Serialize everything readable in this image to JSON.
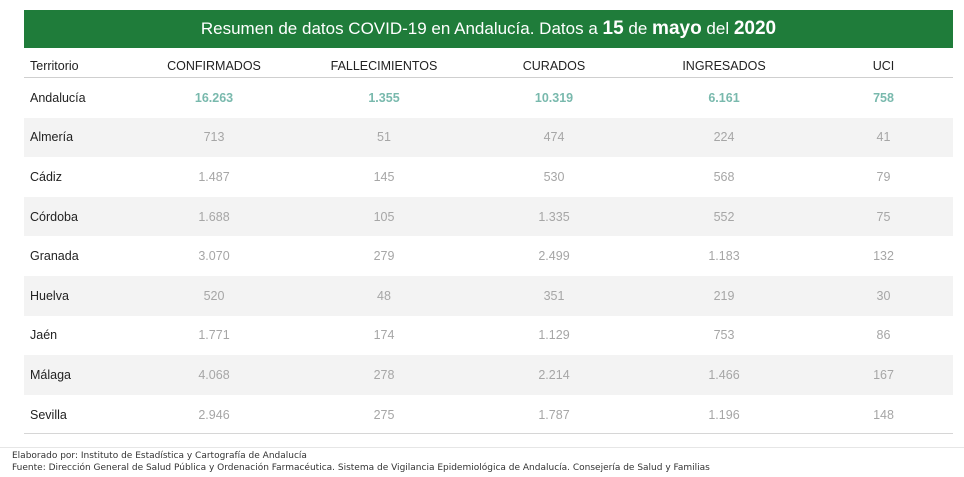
{
  "banner": {
    "part1": "Resumen de datos COVID-19 en Andalucía. Datos a",
    "day": "15",
    "de": "de",
    "month": "mayo",
    "del": "del",
    "year": "2020"
  },
  "table": {
    "headers": [
      "Territorio",
      "CONFIRMADOS",
      "FALLECIMIENTOS",
      "CURADOS",
      "INGRESADOS",
      "UCI"
    ],
    "rows": [
      [
        "Andalucía",
        "16.263",
        "1.355",
        "10.319",
        "6.161",
        "758"
      ],
      [
        "Almería",
        "713",
        "51",
        "474",
        "224",
        "41"
      ],
      [
        "Cádiz",
        "1.487",
        "145",
        "530",
        "568",
        "79"
      ],
      [
        "Córdoba",
        "1.688",
        "105",
        "1.335",
        "552",
        "75"
      ],
      [
        "Granada",
        "3.070",
        "279",
        "2.499",
        "1.183",
        "132"
      ],
      [
        "Huelva",
        "520",
        "48",
        "351",
        "219",
        "30"
      ],
      [
        "Jaén",
        "1.771",
        "174",
        "1.129",
        "753",
        "86"
      ],
      [
        "Málaga",
        "4.068",
        "278",
        "2.214",
        "1.466",
        "167"
      ],
      [
        "Sevilla",
        "2.946",
        "275",
        "1.787",
        "1.196",
        "148"
      ]
    ]
  },
  "footer": {
    "line1": "Elaborado por: Instituto de Estadística y Cartografía de Andalucía",
    "line2": "Fuente: Dirección General de Salud Pública y Ordenación Farmacéutica. Sistema de Vigilancia Epidemiológica de Andalucía. Consejería de Salud y Familias"
  },
  "colors": {
    "banner_bg": "#1f7c3a",
    "total_values": "#79b9ad",
    "row_values": "#a6a6a6",
    "alt_row_bg": "#f3f3f3"
  }
}
